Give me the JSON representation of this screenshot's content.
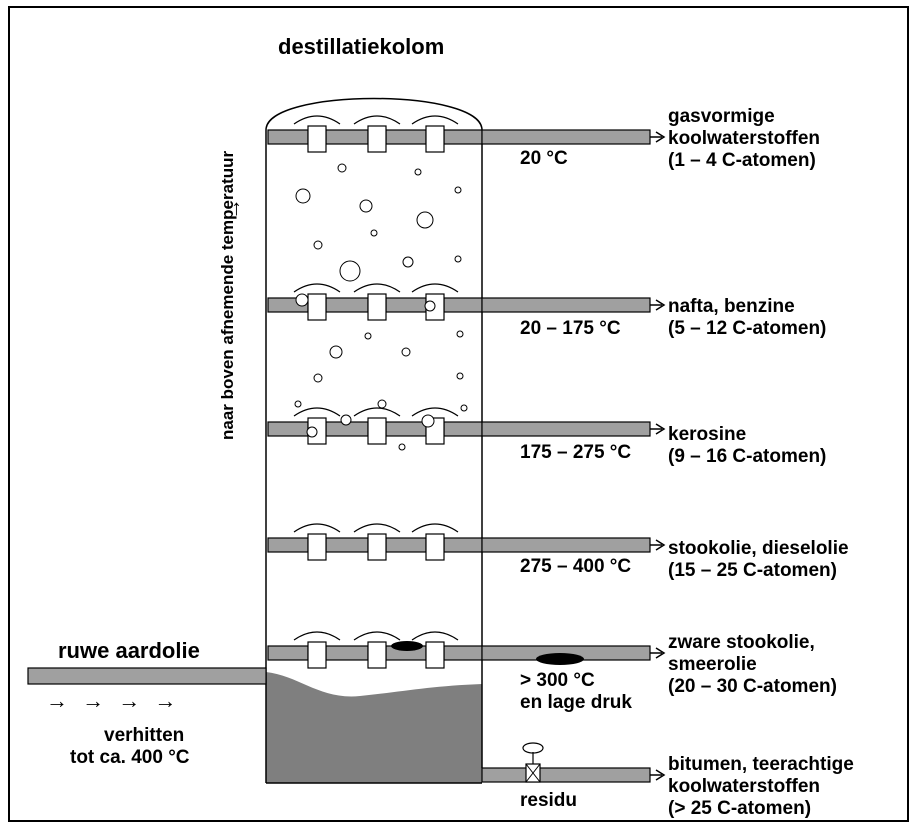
{
  "title": "destillatiekolom",
  "feed": {
    "label": "ruwe aardolie",
    "arrows": "→ → → →",
    "heat_line1": "verhitten",
    "heat_line2": "tot ca. 400 °C"
  },
  "temperature_axis": {
    "label": "naar boven afnemende temperatuur",
    "arrow": "→"
  },
  "fractions": [
    {
      "temp": "20 °C",
      "lines": [
        "gasvormige",
        "koolwaterstoffen",
        "(1 – 4 C-atomen)"
      ]
    },
    {
      "temp": "20 – 175 °C",
      "lines": [
        "nafta, benzine",
        "(5 – 12 C-atomen)"
      ]
    },
    {
      "temp": "175 – 275 °C",
      "lines": [
        "kerosine",
        "(9 – 16 C-atomen)"
      ]
    },
    {
      "temp": "275 – 400 °C",
      "lines": [
        "stookolie, dieselolie",
        "(15 – 25 C-atomen)"
      ]
    },
    {
      "temp_line1": "> 300 °C",
      "temp_line2": "en lage druk",
      "lines": [
        "zware stookolie,",
        "smeerolie",
        "(20 – 30 C-atomen)"
      ]
    },
    {
      "temp": "residu",
      "lines": [
        "bitumen, teerachtige",
        "koolwaterstoffen",
        "(> 25 C-atomen)"
      ]
    }
  ],
  "colors": {
    "pipe": "#a0a0a0",
    "liquid": "#7f7f7f",
    "line": "#000000"
  }
}
